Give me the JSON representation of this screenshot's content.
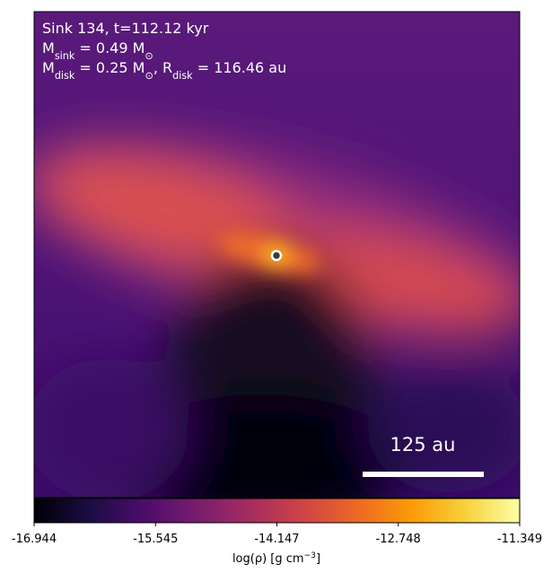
{
  "chart_data": {
    "type": "density-map",
    "annotation_lines": [
      [
        {
          "text": "Sink 134, t=112.12 kyr"
        }
      ],
      [
        {
          "text": "M"
        },
        {
          "text": "sink",
          "shift": "sub"
        },
        {
          "text": " = 0.49 M"
        },
        {
          "text": "⊙",
          "shift": "sub"
        }
      ],
      [
        {
          "text": "M"
        },
        {
          "text": "disk",
          "shift": "sub"
        },
        {
          "text": " = 0.25 M"
        },
        {
          "text": "⊙",
          "shift": "sub"
        },
        {
          "text": ", R"
        },
        {
          "text": "disk",
          "shift": "sub"
        },
        {
          "text": " = 116.46 au"
        }
      ]
    ],
    "scale_bar_label": "125 au",
    "colormap": "inferno",
    "clim": [
      -16.944,
      -11.349
    ],
    "colorbar_ticks": [
      -16.944,
      -15.545,
      -14.147,
      -12.748,
      -11.349
    ],
    "colorbar_label": [
      {
        "text": "log(ρ) [g cm"
      },
      {
        "text": "−3",
        "shift": "super"
      },
      {
        "text": "]"
      }
    ]
  }
}
